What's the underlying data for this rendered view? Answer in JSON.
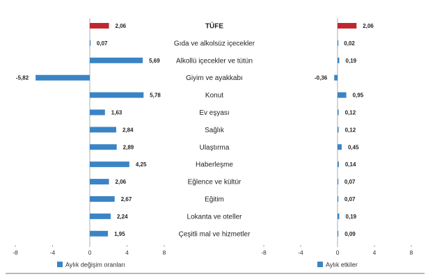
{
  "colors": {
    "bar": "#3a84c6",
    "highlight": "#c0262d",
    "axis": "#9a9a9a",
    "text": "#222222"
  },
  "chart_data": [
    {
      "type": "bar",
      "orientation": "horizontal",
      "categories": [
        "TÜFE",
        "Gıda ve alkolsüz içecekler",
        "Alkollü içecekler ve tütün",
        "Giyim ve ayakkabı",
        "Konut",
        "Ev eşyası",
        "Sağlık",
        "Ulaştırma",
        "Haberleşme",
        "Eğlence ve kültür",
        "Eğitim",
        "Lokanta ve oteller",
        "Çeşitli mal ve hizmetler"
      ],
      "series": [
        {
          "name": "Aylık değişim oranları",
          "values": [
            2.06,
            0.07,
            5.69,
            -5.82,
            5.78,
            1.63,
            2.84,
            2.89,
            4.25,
            2.06,
            2.67,
            2.24,
            1.95
          ],
          "labels": [
            "2,06",
            "0,07",
            "5,69",
            "-5,82",
            "5,78",
            "1,63",
            "2,84",
            "2,89",
            "4,25",
            "2,06",
            "2,67",
            "2,24",
            "1,95"
          ]
        }
      ],
      "highlight_index": 0,
      "xlim": [
        -8,
        8
      ],
      "xticks": [
        -8,
        -4,
        0,
        4,
        8
      ],
      "xtick_labels": [
        "-8",
        "-4",
        "0",
        "4",
        "8"
      ],
      "legend": "bottom-left",
      "grid": false
    },
    {
      "type": "bar",
      "orientation": "horizontal",
      "categories": [
        "TÜFE",
        "Gıda ve alkolsüz içecekler",
        "Alkollü içecekler ve tütün",
        "Giyim ve ayakkabı",
        "Konut",
        "Ev eşyası",
        "Sağlık",
        "Ulaştırma",
        "Haberleşme",
        "Eğlence ve kültür",
        "Eğitim",
        "Lokanta ve oteller",
        "Çeşitli mal ve hizmetler"
      ],
      "series": [
        {
          "name": "Aylık etkiler",
          "values": [
            2.06,
            0.02,
            0.19,
            -0.36,
            0.95,
            0.12,
            0.12,
            0.45,
            0.14,
            0.07,
            0.07,
            0.19,
            0.09
          ],
          "labels": [
            "2,06",
            "0,02",
            "0,19",
            "-0,36",
            "0,95",
            "0,12",
            "0,12",
            "0,45",
            "0,14",
            "0,07",
            "0,07",
            "0,19",
            "0,09"
          ]
        }
      ],
      "highlight_index": 0,
      "xlim": [
        -8,
        8
      ],
      "xticks": [
        -8,
        -4,
        0,
        4,
        8
      ],
      "xtick_labels": [
        "-8",
        "-4",
        "0",
        "4",
        "8"
      ],
      "legend": "bottom-left",
      "grid": false
    }
  ]
}
